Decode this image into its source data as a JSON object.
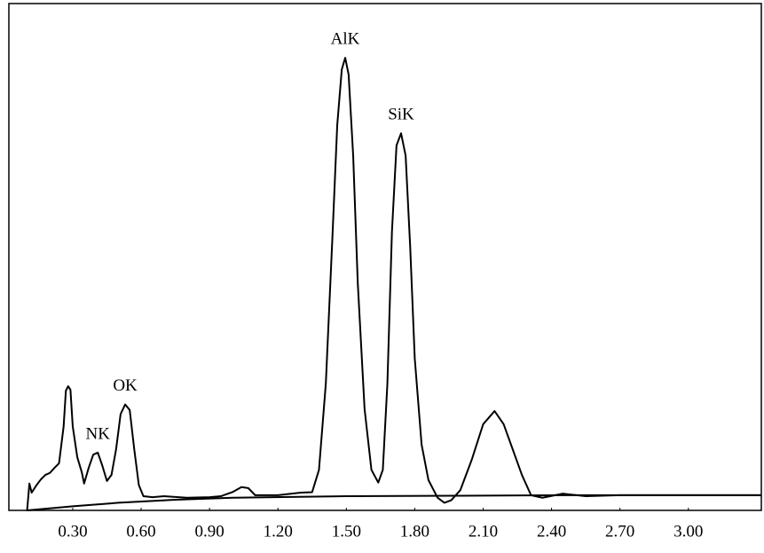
{
  "chart_data": {
    "type": "line",
    "xlim": [
      0.02,
      3.32
    ],
    "ylim": [
      0,
      100
    ],
    "xticks": [
      {
        "value": 0.3,
        "label": "0.30"
      },
      {
        "value": 0.6,
        "label": "0.60"
      },
      {
        "value": 0.9,
        "label": "0.90"
      },
      {
        "value": 1.2,
        "label": "1.20"
      },
      {
        "value": 1.5,
        "label": "1.50"
      },
      {
        "value": 1.8,
        "label": "1.80"
      },
      {
        "value": 2.1,
        "label": "2.10"
      },
      {
        "value": 2.4,
        "label": "2.40"
      },
      {
        "value": 2.7,
        "label": "2.70"
      },
      {
        "value": 3.0,
        "label": "3.00"
      }
    ],
    "series": [
      {
        "color": "#000000",
        "x": [
          0.1,
          0.11,
          0.12,
          0.14,
          0.16,
          0.18,
          0.2,
          0.22,
          0.24,
          0.26,
          0.27,
          0.28,
          0.29,
          0.3,
          0.32,
          0.34,
          0.35,
          0.37,
          0.39,
          0.41,
          0.43,
          0.45,
          0.47,
          0.49,
          0.51,
          0.53,
          0.55,
          0.57,
          0.59,
          0.61,
          0.65,
          0.7,
          0.8,
          0.9,
          0.95,
          1.0,
          1.04,
          1.07,
          1.1,
          1.2,
          1.3,
          1.35,
          1.38,
          1.41,
          1.44,
          1.46,
          1.48,
          1.495,
          1.51,
          1.53,
          1.55,
          1.58,
          1.61,
          1.64,
          1.66,
          1.68,
          1.7,
          1.72,
          1.74,
          1.76,
          1.78,
          1.8,
          1.83,
          1.86,
          1.9,
          1.93,
          1.96,
          2.0,
          2.05,
          2.1,
          2.15,
          2.19,
          2.23,
          2.27,
          2.31,
          2.36,
          2.45,
          2.55,
          2.7,
          3.0,
          3.32
        ],
        "values": [
          0,
          5.3,
          3.5,
          4.9,
          6.1,
          7.0,
          7.4,
          8.4,
          9.3,
          16.5,
          23.6,
          24.5,
          23.8,
          16.6,
          10.5,
          7.5,
          5.3,
          8.4,
          11.0,
          11.4,
          8.8,
          5.8,
          7.0,
          12.0,
          19.0,
          20.9,
          19.8,
          12.0,
          5.0,
          2.8,
          2.6,
          2.8,
          2.5,
          2.6,
          2.8,
          3.6,
          4.6,
          4.4,
          3.0,
          3.0,
          3.5,
          3.6,
          8,
          25,
          55,
          76,
          87,
          89.3,
          86,
          70,
          45,
          20,
          8,
          5.5,
          8,
          25,
          55,
          72,
          74.4,
          70,
          52,
          30,
          13,
          6,
          2.5,
          1.5,
          2.0,
          4,
          10,
          17,
          19.6,
          17,
          12,
          7,
          3,
          2.5,
          3.3,
          2.8,
          3.0,
          3.0,
          3.0
        ]
      },
      {
        "color": "#000000",
        "x": [
          0.1,
          0.3,
          0.5,
          0.75,
          1.0,
          1.5,
          2.0,
          2.5,
          3.32
        ],
        "values": [
          0,
          0.8,
          1.5,
          2.1,
          2.5,
          2.8,
          2.9,
          3.0,
          3.0
        ]
      }
    ],
    "annotations": [
      {
        "text": "NK",
        "x": 0.41
      },
      {
        "text": "OK",
        "x": 0.53
      },
      {
        "text": "AlK",
        "x": 1.495
      },
      {
        "text": "SiK",
        "x": 1.74
      }
    ]
  }
}
